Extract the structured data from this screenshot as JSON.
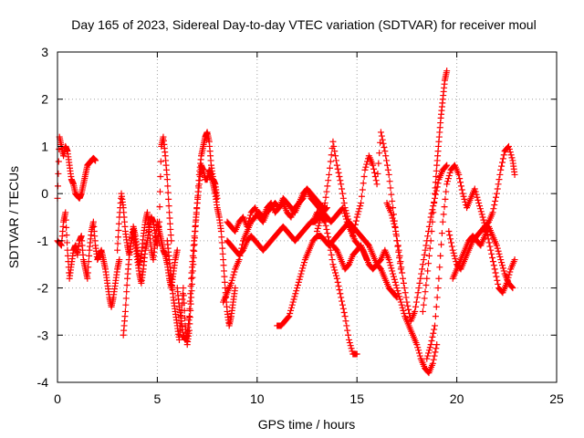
{
  "chart_data": {
    "type": "scatter",
    "title": "Day 165 of 2023, Sidereal Day-to-day VTEC variation (SDTVAR) for receiver moul",
    "xlabel": "GPS time / hours",
    "ylabel": "SDTVAR / TECUs",
    "xlim": [
      0,
      25
    ],
    "ylim": [
      -4,
      3
    ],
    "xticks": [
      0,
      5,
      10,
      15,
      20,
      25
    ],
    "yticks": [
      -4,
      -3,
      -2,
      -1,
      0,
      1,
      2,
      3
    ],
    "xtick_labels": [
      "0",
      "5",
      "10",
      "15",
      "20",
      "25"
    ],
    "ytick_labels": [
      "-4",
      "-3",
      "-2",
      "-1",
      "0",
      "1",
      "2",
      "3"
    ],
    "grid": true,
    "marker": "+",
    "color": "#ff0000",
    "series": [
      {
        "name": "satellite tracks",
        "tracks": [
          {
            "x": [
              0.0,
              0.1,
              0.2,
              0.3,
              0.4,
              0.5,
              0.6,
              0.7,
              0.8,
              0.9,
              1.0,
              1.1,
              1.2,
              1.3,
              1.4,
              1.5,
              1.6,
              1.7,
              1.8,
              1.9
            ],
            "y": [
              -0.1,
              1.2,
              1.0,
              0.8,
              1.0,
              0.9,
              0.6,
              0.3,
              0.2,
              0.0,
              -0.05,
              -0.1,
              0.0,
              0.2,
              0.4,
              0.6,
              0.65,
              0.7,
              0.75,
              0.7
            ]
          },
          {
            "x": [
              0.0,
              0.2,
              0.3,
              0.4,
              0.5,
              0.6,
              0.7,
              0.8,
              0.9,
              1.0,
              1.1,
              1.2,
              1.3,
              1.4,
              1.5,
              1.6,
              1.7,
              1.8,
              1.9,
              2.0,
              2.1,
              2.2,
              2.3,
              2.4,
              2.5,
              2.6,
              2.7,
              2.8,
              2.9,
              3.0,
              3.1
            ],
            "y": [
              -1.0,
              -1.1,
              -0.6,
              -0.4,
              -1.2,
              -1.8,
              -1.5,
              -1.2,
              -1.1,
              -1.3,
              -1.0,
              -0.9,
              -1.4,
              -1.6,
              -1.8,
              -1.2,
              -0.8,
              -0.6,
              -1.1,
              -1.4,
              -1.3,
              -1.2,
              -1.4,
              -1.6,
              -1.9,
              -2.2,
              -2.4,
              -2.2,
              -1.9,
              -1.6,
              -1.4
            ]
          },
          {
            "x": [
              3.0,
              3.1,
              3.2,
              3.3,
              3.4,
              3.5,
              3.6,
              3.7,
              3.8,
              3.9,
              4.0,
              4.1,
              4.2,
              4.3,
              4.4,
              4.5,
              4.6,
              4.7,
              4.8,
              4.9,
              5.0,
              5.1,
              5.2,
              5.3,
              5.4,
              5.5,
              5.6,
              5.7,
              5.8,
              5.9,
              6.0
            ],
            "y": [
              -1.2,
              -0.5,
              0.0,
              -0.3,
              -0.8,
              -1.1,
              -1.3,
              -1.0,
              -0.7,
              -0.9,
              -1.2,
              -1.5,
              -1.3,
              -0.9,
              -0.6,
              -0.4,
              -0.8,
              -1.2,
              -1.4,
              -1.0,
              -0.6,
              -0.8,
              -1.0,
              -1.2,
              -1.3,
              -1.5,
              -1.8,
              -2.0,
              -1.7,
              -1.4,
              -1.2
            ]
          },
          {
            "x": [
              3.3,
              3.4,
              3.5,
              3.6,
              3.7,
              3.8,
              3.9,
              4.0,
              4.1,
              4.2,
              4.3,
              4.4,
              4.5,
              4.6,
              4.7,
              4.8,
              4.9,
              5.0,
              5.1,
              5.2,
              5.3,
              5.4,
              5.5,
              5.6,
              5.7
            ],
            "y": [
              -3.0,
              -2.5,
              -1.8,
              -1.3,
              -1.0,
              -0.8,
              -1.1,
              -1.4,
              -1.7,
              -1.9,
              -1.6,
              -1.2,
              -1.0,
              -0.7,
              -0.5,
              -0.6,
              -0.9,
              -1.1,
              -0.6,
              1.0,
              1.2,
              0.8,
              0.3,
              -0.4,
              -1.0
            ]
          },
          {
            "x": [
              5.5,
              5.6,
              5.7,
              5.8,
              5.9,
              6.0,
              6.1,
              6.2,
              6.3,
              6.4,
              6.5,
              6.6,
              6.7,
              6.8,
              6.9,
              7.0,
              7.1,
              7.2,
              7.3,
              7.4,
              7.5,
              7.6,
              7.7,
              7.8,
              7.9,
              8.0
            ],
            "y": [
              -1.0,
              -1.4,
              -1.8,
              -2.2,
              -2.5,
              -2.8,
              -3.1,
              -2.6,
              -2.0,
              -2.8,
              -3.2,
              -2.9,
              -2.2,
              -1.5,
              -0.8,
              -0.2,
              0.4,
              0.8,
              1.0,
              1.2,
              1.3,
              1.1,
              0.6,
              0.3,
              0.2,
              -0.1
            ]
          },
          {
            "x": [
              6.0,
              6.1,
              6.2,
              6.3,
              6.4,
              6.5,
              6.6,
              6.7,
              6.8,
              6.9,
              7.0,
              7.1,
              7.2,
              7.3,
              7.4,
              7.5,
              7.6,
              7.7,
              7.8,
              7.9,
              8.0,
              8.1,
              8.2,
              8.3,
              8.4,
              8.5,
              8.6,
              8.7,
              8.8,
              8.9
            ],
            "y": [
              -2.0,
              -2.4,
              -2.7,
              -3.0,
              -3.1,
              -3.0,
              -2.6,
              -1.8,
              -1.2,
              -0.7,
              -0.2,
              0.2,
              0.6,
              0.5,
              0.3,
              0.3,
              0.5,
              0.4,
              0.2,
              0.0,
              -0.3,
              -0.5,
              -0.8,
              -1.4,
              -2.0,
              -2.5,
              -2.8,
              -2.6,
              -2.3,
              -2.0
            ]
          },
          {
            "x": [
              8.5,
              8.7,
              8.9,
              9.1,
              9.3,
              9.5,
              9.7,
              9.9,
              10.1,
              10.3,
              10.5,
              10.7,
              10.9,
              11.1,
              11.3,
              11.5,
              11.7,
              11.9,
              12.1,
              12.3,
              12.5,
              12.7,
              12.9,
              13.1,
              13.3,
              13.5,
              13.7,
              13.9,
              14.1,
              14.3,
              14.5,
              14.7,
              14.9,
              15.1,
              15.3,
              15.5
            ],
            "y": [
              -0.6,
              -0.7,
              -0.8,
              -0.6,
              -0.5,
              -0.7,
              -0.4,
              -0.3,
              -0.5,
              -0.6,
              -0.4,
              -0.3,
              -0.2,
              -0.3,
              -0.1,
              -0.2,
              -0.3,
              -0.4,
              -0.2,
              0.0,
              0.1,
              -0.1,
              -0.2,
              -0.3,
              -0.4,
              -0.5,
              -0.6,
              -0.5,
              -0.4,
              -0.3,
              -0.6,
              -0.8,
              -1.0,
              -1.1,
              -1.2,
              -1.4
            ]
          },
          {
            "x": [
              8.5,
              8.7,
              8.9,
              9.1,
              9.3,
              9.5,
              9.7,
              9.9,
              10.1,
              10.3,
              10.5,
              10.7,
              10.9,
              11.1,
              11.3,
              11.5,
              11.7,
              11.9,
              12.1,
              12.3,
              12.5,
              12.7,
              12.9,
              13.1,
              13.3,
              13.5
            ],
            "y": [
              -1.0,
              -1.1,
              -1.2,
              -1.3,
              -1.2,
              -1.0,
              -0.9,
              -1.0,
              -1.1,
              -1.2,
              -1.1,
              -1.0,
              -0.9,
              -0.8,
              -0.7,
              -0.8,
              -0.9,
              -1.0,
              -0.9,
              -0.8,
              -0.7,
              -0.6,
              -0.6,
              -0.5,
              -0.4,
              -0.3
            ]
          },
          {
            "x": [
              8.3,
              8.5,
              8.7,
              8.9,
              9.1,
              9.3,
              9.5,
              9.7,
              9.9,
              10.1,
              10.3,
              10.5,
              10.7,
              10.9,
              11.1,
              11.3,
              11.5,
              11.7,
              11.9,
              12.1,
              12.3,
              12.5,
              12.7,
              12.9,
              13.1,
              13.3
            ],
            "y": [
              -2.3,
              -2.1,
              -1.9,
              -1.6,
              -1.4,
              -1.0,
              -0.8,
              -0.6,
              -0.5,
              -0.4,
              -0.5,
              -0.3,
              -0.2,
              -0.4,
              -0.3,
              -0.2,
              -0.4,
              -0.5,
              -0.3,
              -0.2,
              -0.1,
              0.1,
              0.0,
              -0.1,
              -0.2,
              -0.3
            ]
          },
          {
            "x": [
              11.0,
              11.2,
              11.4,
              11.6,
              11.8,
              12.0,
              12.2,
              12.4,
              12.6,
              12.8,
              13.0,
              13.2,
              13.4,
              13.6,
              13.8,
              14.0,
              14.2,
              14.4,
              14.6,
              14.8,
              15.0,
              15.2,
              15.4,
              15.6,
              15.8,
              16.0,
              16.2,
              16.4,
              16.6,
              16.8,
              17.0
            ],
            "y": [
              -2.8,
              -2.8,
              -2.7,
              -2.6,
              -2.3,
              -2.0,
              -1.7,
              -1.4,
              -1.2,
              -1.0,
              -0.9,
              -0.9,
              -1.0,
              -1.1,
              -1.0,
              -0.9,
              -0.8,
              -0.7,
              -0.6,
              -0.7,
              -0.8,
              -0.9,
              -1.0,
              -1.1,
              -1.3,
              -1.5,
              -1.6,
              -1.8,
              -2.0,
              -2.1,
              -2.2
            ]
          },
          {
            "x": [
              12.8,
              13.0,
              13.2,
              13.4,
              13.6,
              13.8,
              14.0,
              14.2,
              14.4,
              14.6,
              14.8,
              15.0
            ],
            "y": [
              -0.6,
              -0.4,
              -0.5,
              -0.6,
              -1.0,
              -1.5,
              -1.8,
              -2.2,
              -2.6,
              -3.1,
              -3.4,
              -3.4
            ]
          },
          {
            "x": [
              13.0,
              13.2,
              13.4,
              13.6,
              13.8,
              14.0,
              14.2,
              14.4,
              14.6,
              14.8,
              15.0,
              15.2,
              15.4,
              15.6,
              15.8,
              16.0,
              16.2,
              16.4,
              16.6,
              16.8,
              17.0,
              17.2
            ],
            "y": [
              -0.8,
              -0.5,
              -0.2,
              0.4,
              1.1,
              0.6,
              0.2,
              -0.3,
              -0.6,
              -0.9,
              -0.5,
              -0.2,
              0.5,
              0.8,
              0.6,
              0.2,
              1.3,
              0.9,
              0.4,
              -0.3,
              -1.0,
              -1.6
            ]
          },
          {
            "x": [
              13.8,
              14.0,
              14.2,
              14.4,
              14.6,
              14.8,
              15.0,
              15.2,
              15.4,
              15.6,
              15.8,
              16.0,
              16.2,
              16.4,
              16.6,
              16.8,
              17.0,
              17.2,
              17.4,
              17.6,
              17.8,
              18.0,
              18.2,
              18.4,
              18.6,
              18.8,
              19.0
            ],
            "y": [
              -1.1,
              -1.2,
              -1.4,
              -1.6,
              -1.5,
              -1.3,
              -1.2,
              -1.1,
              -1.3,
              -1.5,
              -1.6,
              -1.5,
              -1.4,
              -1.2,
              -1.4,
              -1.7,
              -2.0,
              -2.3,
              -2.6,
              -2.8,
              -3.0,
              -3.2,
              -3.5,
              -3.7,
              -3.8,
              -3.6,
              -3.2
            ]
          },
          {
            "x": [
              16.5,
              16.7,
              16.9,
              17.1,
              17.3,
              17.5,
              17.7,
              17.9,
              18.1,
              18.3,
              18.5,
              18.7,
              18.9,
              19.1,
              19.3,
              19.5
            ],
            "y": [
              -0.2,
              -0.4,
              -0.7,
              -1.2,
              -1.8,
              -2.3,
              -2.7,
              -2.5,
              -2.0,
              -1.5,
              -1.0,
              -0.5,
              -0.1,
              0.3,
              0.5,
              0.6
            ]
          },
          {
            "x": [
              18.3,
              18.5,
              18.7,
              18.9,
              19.0,
              19.1,
              19.2,
              19.3,
              19.4,
              19.5
            ],
            "y": [
              -2.5,
              -1.8,
              -1.0,
              0.0,
              0.6,
              1.1,
              1.6,
              2.0,
              2.4,
              2.6
            ]
          },
          {
            "x": [
              18.5,
              18.7,
              18.9,
              19.1,
              19.3,
              19.5,
              19.7,
              19.9,
              20.1,
              20.3,
              20.5,
              20.7,
              20.9,
              21.1,
              21.3,
              21.5,
              21.7,
              21.9,
              22.1,
              22.3,
              22.5,
              22.7,
              22.9
            ],
            "y": [
              -3.5,
              -3.2,
              -2.8,
              -1.8,
              -0.6,
              0.2,
              0.5,
              0.6,
              0.4,
              0.0,
              -0.3,
              -0.1,
              0.1,
              -0.2,
              -0.5,
              -0.8,
              -1.2,
              -1.6,
              -2.0,
              -2.1,
              -1.9,
              -1.6,
              -1.4
            ]
          },
          {
            "x": [
              19.6,
              19.8,
              20.0,
              20.2,
              20.4,
              20.6,
              20.8,
              21.0,
              21.2,
              21.4,
              21.6,
              21.8,
              22.0,
              22.2,
              22.4,
              22.6,
              22.8,
              22.9
            ],
            "y": [
              -0.8,
              -1.2,
              -1.5,
              -1.6,
              -1.4,
              -1.2,
              -1.0,
              -0.9,
              -0.8,
              -0.7,
              -0.6,
              -0.4,
              0.0,
              0.5,
              0.9,
              1.0,
              0.7,
              0.4
            ]
          },
          {
            "x": [
              19.8,
              20.0,
              20.2,
              20.4,
              20.6,
              20.8,
              21.0,
              21.2,
              21.4,
              21.6,
              21.8,
              22.0,
              22.2,
              22.4,
              22.6,
              22.8
            ],
            "y": [
              -1.8,
              -1.6,
              -1.4,
              -1.2,
              -1.0,
              -0.9,
              -1.0,
              -1.1,
              -0.9,
              -0.7,
              -0.9,
              -1.1,
              -1.4,
              -1.7,
              -1.9,
              -2.0
            ]
          }
        ]
      }
    ]
  }
}
